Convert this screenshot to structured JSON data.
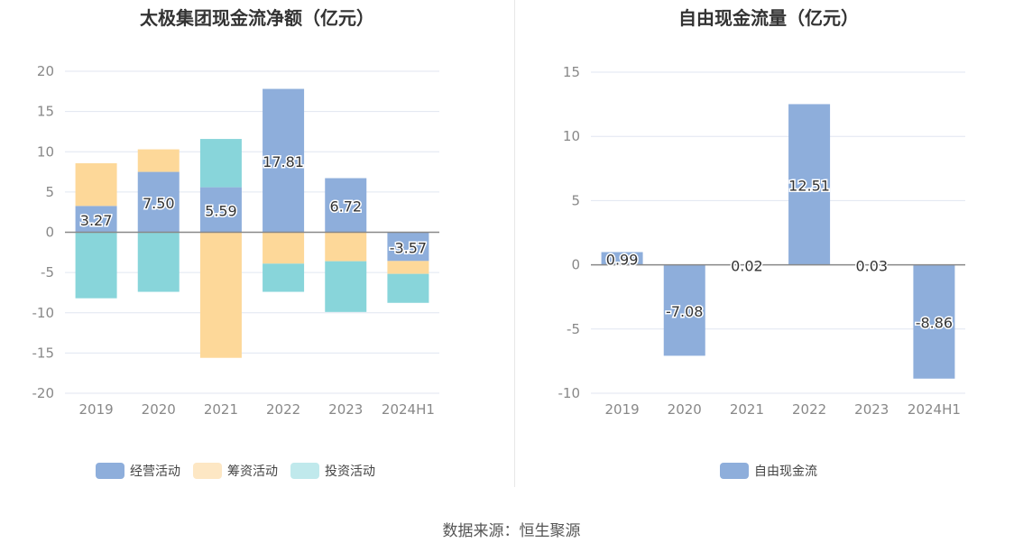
{
  "chart_data": [
    {
      "type": "bar",
      "stacked": true,
      "title": "太极集团现金流净额（亿元）",
      "categories": [
        "2019",
        "2020",
        "2021",
        "2022",
        "2023",
        "2024H1"
      ],
      "ylim": [
        -20,
        20
      ],
      "yticks": [
        20,
        15,
        10,
        5,
        0,
        -5,
        -10,
        -15,
        -20
      ],
      "grid": true,
      "legend": "bottom",
      "series": [
        {
          "name": "经营活动",
          "color": "#8eaedb",
          "values": [
            3.27,
            7.5,
            5.59,
            17.81,
            6.72,
            -3.57
          ],
          "labels": [
            "3.27",
            "7.50",
            "5.59",
            "17.81",
            "6.72",
            "-3.57"
          ]
        },
        {
          "name": "筹资活动",
          "color": "#fdd899",
          "legend_color": "#fde7c4",
          "values": [
            5.3,
            2.8,
            -15.6,
            -3.9,
            -3.6,
            -1.6
          ]
        },
        {
          "name": "投资活动",
          "color": "#88d5da",
          "legend_color": "#c0e9ec",
          "values": [
            -8.2,
            -7.4,
            6.0,
            -3.5,
            -6.3,
            -3.6
          ]
        }
      ]
    },
    {
      "type": "bar",
      "title": "自由现金流量（亿元）",
      "categories": [
        "2019",
        "2020",
        "2021",
        "2022",
        "2023",
        "2024H1"
      ],
      "ylim": [
        -10,
        15
      ],
      "yticks": [
        15,
        10,
        5,
        0,
        -5,
        -10
      ],
      "grid": true,
      "legend": "bottom",
      "series": [
        {
          "name": "自由现金流",
          "color": "#8eaedb",
          "values": [
            0.99,
            -7.08,
            0.02,
            12.51,
            0.03,
            -8.86
          ],
          "labels": [
            "0.99",
            "-7.08",
            "0.02",
            "12.51",
            "0.03",
            "-8.86"
          ]
        }
      ]
    }
  ],
  "source": "数据来源：恒生聚源"
}
